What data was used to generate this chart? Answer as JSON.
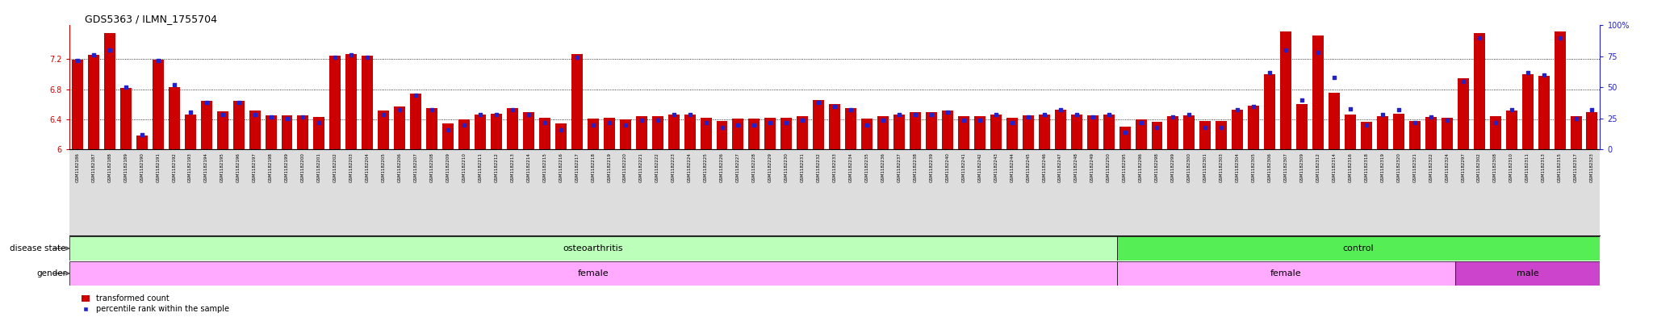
{
  "title": "GDS5363 / ILMN_1755704",
  "samples": [
    "GSM1182186",
    "GSM1182187",
    "GSM1182188",
    "GSM1182189",
    "GSM1182190",
    "GSM1182191",
    "GSM1182192",
    "GSM1182193",
    "GSM1182194",
    "GSM1182195",
    "GSM1182196",
    "GSM1182197",
    "GSM1182198",
    "GSM1182199",
    "GSM1182200",
    "GSM1182201",
    "GSM1182202",
    "GSM1182203",
    "GSM1182204",
    "GSM1182205",
    "GSM1182206",
    "GSM1182207",
    "GSM1182208",
    "GSM1182209",
    "GSM1182210",
    "GSM1182211",
    "GSM1182212",
    "GSM1182213",
    "GSM1182214",
    "GSM1182215",
    "GSM1182216",
    "GSM1182217",
    "GSM1182218",
    "GSM1182219",
    "GSM1182220",
    "GSM1182221",
    "GSM1182222",
    "GSM1182223",
    "GSM1182224",
    "GSM1182225",
    "GSM1182226",
    "GSM1182227",
    "GSM1182228",
    "GSM1182229",
    "GSM1182230",
    "GSM1182231",
    "GSM1182232",
    "GSM1182233",
    "GSM1182234",
    "GSM1182235",
    "GSM1182236",
    "GSM1182237",
    "GSM1182238",
    "GSM1182239",
    "GSM1182240",
    "GSM1182241",
    "GSM1182242",
    "GSM1182243",
    "GSM1182244",
    "GSM1182245",
    "GSM1182246",
    "GSM1182247",
    "GSM1182248",
    "GSM1182249",
    "GSM1182250",
    "GSM1182295",
    "GSM1182296",
    "GSM1182298",
    "GSM1182299",
    "GSM1182300",
    "GSM1182301",
    "GSM1182303",
    "GSM1182304",
    "GSM1182305",
    "GSM1182306",
    "GSM1182307",
    "GSM1182309",
    "GSM1182312",
    "GSM1182314",
    "GSM1182316",
    "GSM1182318",
    "GSM1182319",
    "GSM1182320",
    "GSM1182321",
    "GSM1182322",
    "GSM1182324",
    "GSM1182297",
    "GSM1182302",
    "GSM1182308",
    "GSM1182310",
    "GSM1182311",
    "GSM1182313",
    "GSM1182315",
    "GSM1182317",
    "GSM1182323"
  ],
  "bar_values": [
    7.19,
    7.26,
    7.55,
    6.82,
    6.19,
    7.19,
    6.83,
    6.47,
    6.65,
    6.51,
    6.65,
    6.52,
    6.46,
    6.45,
    6.46,
    6.43,
    7.25,
    7.27,
    7.25,
    6.52,
    6.57,
    6.74,
    6.55,
    6.35,
    6.4,
    6.47,
    6.48,
    6.55,
    6.5,
    6.42,
    6.35,
    7.27,
    6.41,
    6.42,
    6.4,
    6.44,
    6.44,
    6.47,
    6.47,
    6.42,
    6.38,
    6.41,
    6.41,
    6.42,
    6.42,
    6.44,
    6.66,
    6.6,
    6.55,
    6.41,
    6.44,
    6.47,
    6.5,
    6.5,
    6.52,
    6.44,
    6.44,
    6.47,
    6.42,
    6.45,
    6.47,
    6.53,
    6.47,
    6.45,
    6.47,
    6.31,
    6.4,
    6.37,
    6.44,
    6.45,
    6.38,
    6.38,
    6.53,
    6.58,
    7.0,
    7.57,
    6.6,
    7.52,
    6.75,
    6.47,
    6.37,
    6.44,
    6.48,
    6.38,
    6.43,
    6.42,
    6.95,
    7.55,
    6.44,
    6.52,
    7.0,
    6.98,
    7.57,
    6.44,
    6.5
  ],
  "percentile_values": [
    72,
    76,
    80,
    50,
    12,
    72,
    52,
    30,
    38,
    28,
    38,
    28,
    26,
    25,
    26,
    22,
    74,
    76,
    74,
    28,
    32,
    44,
    32,
    16,
    20,
    28,
    28,
    32,
    28,
    22,
    16,
    74,
    20,
    22,
    20,
    24,
    24,
    28,
    28,
    22,
    18,
    20,
    20,
    22,
    22,
    24,
    38,
    35,
    32,
    20,
    24,
    28,
    28,
    28,
    30,
    24,
    24,
    28,
    22,
    26,
    28,
    32,
    28,
    26,
    28,
    14,
    22,
    18,
    26,
    28,
    18,
    18,
    32,
    35,
    62,
    80,
    40,
    78,
    58,
    33,
    20,
    28,
    32,
    22,
    26,
    24,
    55,
    90,
    22,
    32,
    62,
    60,
    90,
    25,
    32
  ],
  "ymin": 6.0,
  "ymax": 7.65,
  "yticks_left": [
    6.0,
    6.4,
    6.8,
    7.2
  ],
  "ytick_labels_left": [
    "6",
    "6.4",
    "6.8",
    "7.2"
  ],
  "yticks_right": [
    0,
    25,
    50,
    75,
    100
  ],
  "ytick_labels_right": [
    "0",
    "25",
    "50",
    "75",
    "100%"
  ],
  "bar_color": "#cc0000",
  "dot_color": "#2222cc",
  "disease_state_oa_color": "#bbffbb",
  "disease_state_ctrl_color": "#55ee55",
  "gender_female_light_color": "#ffaaff",
  "gender_male_color": "#cc44cc",
  "n_osteoarthritis": 65,
  "n_control_female": 21,
  "n_control_male": 9,
  "label_disease_state": "disease state",
  "label_gender": "gender",
  "label_oa": "osteoarthritis",
  "label_control": "control",
  "label_female": "female",
  "label_male": "male",
  "legend_bar_label": "transformed count",
  "legend_dot_label": "percentile rank within the sample"
}
